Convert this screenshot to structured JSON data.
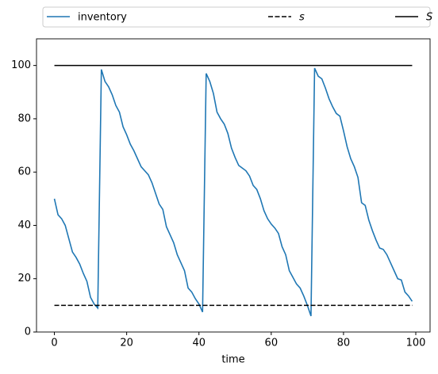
{
  "chart_data": {
    "type": "line",
    "xlabel": "time",
    "series": [
      {
        "name": "inventory",
        "color": "#1f77b4",
        "dash": "solid",
        "x": [
          0,
          1,
          2,
          3,
          4,
          5,
          6,
          7,
          8,
          9,
          10,
          11,
          12,
          13,
          14,
          15,
          16,
          17,
          18,
          19,
          20,
          21,
          22,
          23,
          24,
          25,
          26,
          27,
          28,
          29,
          30,
          31,
          32,
          33,
          34,
          35,
          36,
          37,
          38,
          39,
          40,
          41,
          42,
          43,
          44,
          45,
          46,
          47,
          48,
          49,
          50,
          51,
          52,
          53,
          54,
          55,
          56,
          57,
          58,
          59,
          60,
          61,
          62,
          63,
          64,
          65,
          66,
          67,
          68,
          69,
          70,
          71,
          72,
          73,
          74,
          75,
          76,
          77,
          78,
          79,
          80,
          81,
          82,
          83,
          84,
          85,
          86,
          87,
          88,
          89,
          90,
          91,
          92,
          93,
          94,
          95,
          96,
          97,
          98,
          99
        ],
        "values": [
          50,
          44,
          42.5,
          40,
          35,
          30,
          28,
          25.5,
          22,
          19,
          13,
          10.5,
          9,
          98.5,
          94,
          92,
          89,
          85,
          82.5,
          77,
          74,
          70.5,
          68,
          65,
          62,
          60.5,
          59,
          56,
          52,
          48,
          46,
          39.5,
          36.5,
          33.5,
          29,
          26,
          23,
          16.5,
          15,
          12.5,
          10.5,
          7.5,
          97,
          94,
          89.5,
          82.5,
          80,
          78,
          74.5,
          69,
          65.5,
          62.5,
          61.5,
          60.5,
          58.5,
          55,
          53.5,
          50,
          45.5,
          42.5,
          40.5,
          39,
          37,
          32,
          29,
          23,
          20.5,
          18,
          16.5,
          13.5,
          10,
          6,
          99,
          96,
          95,
          91.5,
          87.5,
          84.5,
          82,
          81,
          75.5,
          69.5,
          65,
          62,
          58,
          48.5,
          47.5,
          42,
          38,
          34.5,
          31.5,
          31,
          29,
          26,
          23,
          20,
          19.5,
          15,
          13.5,
          11.5
        ]
      },
      {
        "name": "s",
        "color": "#000000",
        "dash": "dashed",
        "font_style": "italic",
        "x": [
          0,
          99
        ],
        "values": [
          10,
          10
        ]
      },
      {
        "name": "S",
        "color": "#000000",
        "dash": "solid",
        "font_style": "italic",
        "x": [
          0,
          99
        ],
        "values": [
          100,
          100
        ]
      }
    ],
    "xlim": [
      -4.95,
      103.95
    ],
    "xticks": [
      0,
      20,
      40,
      60,
      80,
      100
    ],
    "ylim": [
      0,
      110
    ],
    "yticks": [
      0,
      20,
      40,
      60,
      80,
      100
    ],
    "legend": "top"
  }
}
